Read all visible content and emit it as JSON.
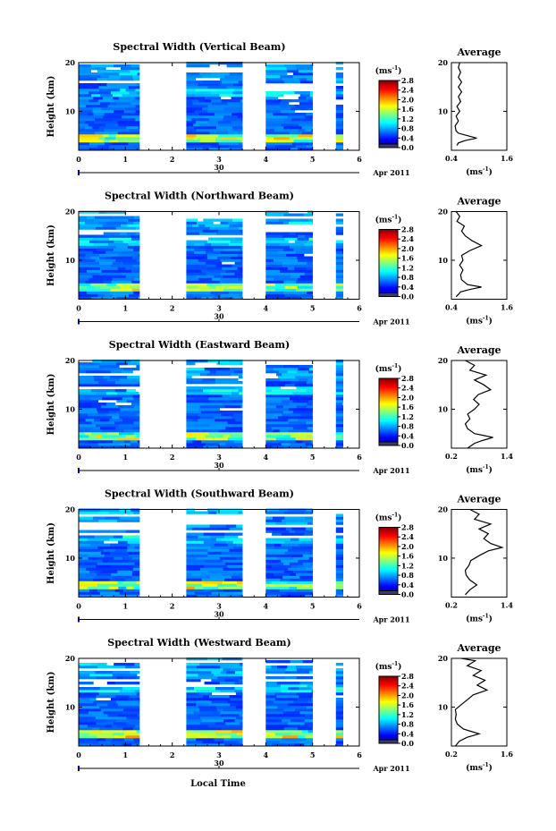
{
  "figure": {
    "xlabel": "Local Time"
  },
  "chart_data": [
    {
      "type": "heatmap",
      "title": "Spectral Width (Vertical Beam)",
      "ylabel": "Height (km)",
      "xlim": [
        0,
        6
      ],
      "ylim": [
        2,
        20
      ],
      "x_ticks": [
        "0",
        "1",
        "2",
        "3",
        "4",
        "5",
        "6"
      ],
      "y_ticks": [
        "10",
        "20"
      ],
      "date_tick": "30",
      "date_label": "Apr 2011",
      "data_segments": [
        [
          0,
          1.3
        ],
        [
          2.3,
          3.5
        ],
        [
          4,
          5
        ],
        [
          5.5,
          5.65
        ]
      ],
      "colorbar": {
        "label": "(ms",
        "label_sup": "-1",
        "label_close": ")",
        "min": 0,
        "max": 2.8,
        "ticks": [
          "0.0",
          "0.4",
          "0.8",
          "1.2",
          "1.6",
          "2.0",
          "2.4",
          "2.8"
        ]
      },
      "profile": {
        "title": "Average",
        "xlim": [
          0.4,
          1.6
        ],
        "x_ticks": [
          "0.4",
          "1.6"
        ],
        "xlabel": "(ms",
        "xlabel_sup": "-1",
        "xlabel_close": ")",
        "y_ticks": [
          "10",
          "20"
        ],
        "points": [
          [
            0.52,
            3
          ],
          [
            0.55,
            3.5
          ],
          [
            0.7,
            4
          ],
          [
            0.95,
            4.5
          ],
          [
            0.75,
            5
          ],
          [
            0.55,
            5.5
          ],
          [
            0.5,
            6
          ],
          [
            0.48,
            7
          ],
          [
            0.55,
            8
          ],
          [
            0.5,
            9
          ],
          [
            0.58,
            10
          ],
          [
            0.52,
            11
          ],
          [
            0.6,
            12
          ],
          [
            0.55,
            13
          ],
          [
            0.62,
            14
          ],
          [
            0.55,
            15
          ],
          [
            0.62,
            16
          ],
          [
            0.55,
            17
          ],
          [
            0.6,
            18
          ],
          [
            0.55,
            19
          ],
          [
            0.58,
            20
          ]
        ]
      }
    },
    {
      "type": "heatmap",
      "title": "Spectral Width (Northward Beam)",
      "ylabel": "Height (km)",
      "xlim": [
        0,
        6
      ],
      "ylim": [
        2,
        20
      ],
      "x_ticks": [
        "0",
        "1",
        "2",
        "3",
        "4",
        "5",
        "6"
      ],
      "y_ticks": [
        "10",
        "20"
      ],
      "date_tick": "30",
      "date_label": "Apr 2011",
      "data_segments": [
        [
          0,
          1.3
        ],
        [
          2.3,
          3.5
        ],
        [
          4,
          5
        ],
        [
          5.5,
          5.65
        ]
      ],
      "colorbar": {
        "label": "(ms",
        "label_sup": "-1",
        "label_close": ")",
        "min": 0,
        "max": 2.8,
        "ticks": [
          "0.0",
          "0.4",
          "0.8",
          "1.2",
          "1.6",
          "2.0",
          "2.4",
          "2.8"
        ]
      },
      "profile": {
        "title": "Average",
        "xlim": [
          0.4,
          1.6
        ],
        "x_ticks": [
          "0.4",
          "1.6"
        ],
        "xlabel": "(ms",
        "xlabel_sup": "-1",
        "xlabel_close": ")",
        "y_ticks": [
          "10",
          "20"
        ],
        "points": [
          [
            0.5,
            2.5
          ],
          [
            0.55,
            3
          ],
          [
            0.6,
            3.5
          ],
          [
            0.8,
            4
          ],
          [
            1.05,
            4.5
          ],
          [
            0.75,
            5
          ],
          [
            0.62,
            6
          ],
          [
            0.6,
            7
          ],
          [
            0.65,
            8
          ],
          [
            0.58,
            9
          ],
          [
            0.65,
            10
          ],
          [
            0.62,
            11
          ],
          [
            0.8,
            12
          ],
          [
            1.05,
            13
          ],
          [
            0.85,
            14
          ],
          [
            0.7,
            15
          ],
          [
            0.62,
            16
          ],
          [
            0.68,
            17
          ],
          [
            0.52,
            18
          ],
          [
            0.58,
            19
          ],
          [
            0.5,
            20
          ]
        ]
      }
    },
    {
      "type": "heatmap",
      "title": "Spectral Width (Eastward Beam)",
      "ylabel": "Height (km)",
      "xlim": [
        0,
        6
      ],
      "ylim": [
        2,
        20
      ],
      "x_ticks": [
        "0",
        "1",
        "2",
        "3",
        "4",
        "5",
        "6"
      ],
      "y_ticks": [
        "10",
        "20"
      ],
      "date_tick": "30",
      "date_label": "Apr 2011",
      "data_segments": [
        [
          0,
          1.3
        ],
        [
          2.3,
          3.5
        ],
        [
          4,
          5
        ],
        [
          5.5,
          5.65
        ]
      ],
      "colorbar": {
        "label": "(ms",
        "label_sup": "-1",
        "label_close": ")",
        "min": 0,
        "max": 2.8,
        "ticks": [
          "0.0",
          "0.4",
          "0.8",
          "1.2",
          "1.6",
          "2.0",
          "2.4",
          "2.8"
        ]
      },
      "profile": {
        "title": "Average",
        "xlim": [
          0.2,
          1.4
        ],
        "x_ticks": [
          "0.2",
          "1.4"
        ],
        "xlabel": "(ms",
        "xlabel_sup": "-1",
        "xlabel_close": ")",
        "y_ticks": [
          "10",
          "20"
        ],
        "points": [
          [
            0.55,
            2
          ],
          [
            0.7,
            3
          ],
          [
            0.85,
            3.5
          ],
          [
            1.1,
            4.2
          ],
          [
            0.7,
            5
          ],
          [
            0.55,
            6
          ],
          [
            0.5,
            7
          ],
          [
            0.6,
            8
          ],
          [
            0.55,
            9
          ],
          [
            0.7,
            10
          ],
          [
            0.8,
            11
          ],
          [
            0.68,
            12
          ],
          [
            0.78,
            13
          ],
          [
            1.05,
            14
          ],
          [
            0.9,
            15
          ],
          [
            0.7,
            16
          ],
          [
            0.95,
            17
          ],
          [
            0.6,
            18
          ],
          [
            0.7,
            19
          ],
          [
            0.5,
            20
          ]
        ]
      }
    },
    {
      "type": "heatmap",
      "title": "Spectral Width (Southward Beam)",
      "ylabel": "Height (km)",
      "xlim": [
        0,
        6
      ],
      "ylim": [
        2,
        20
      ],
      "x_ticks": [
        "0",
        "1",
        "2",
        "3",
        "4",
        "5",
        "6"
      ],
      "y_ticks": [
        "10",
        "20"
      ],
      "date_tick": "30",
      "date_label": "Apr 2011",
      "data_segments": [
        [
          0,
          1.3
        ],
        [
          2.3,
          3.5
        ],
        [
          4,
          5
        ],
        [
          5.5,
          5.65
        ]
      ],
      "colorbar": {
        "label": "(ms",
        "label_sup": "-1",
        "label_close": ")",
        "min": 0,
        "max": 2.8,
        "ticks": [
          "0.0",
          "0.4",
          "0.8",
          "1.2",
          "1.6",
          "2.0",
          "2.4",
          "2.8"
        ]
      },
      "profile": {
        "title": "Average",
        "xlim": [
          0.2,
          1.4
        ],
        "x_ticks": [
          "0.2",
          "1.4"
        ],
        "xlabel": "(ms",
        "xlabel_sup": "-1",
        "xlabel_close": ")",
        "y_ticks": [
          "10",
          "20"
        ],
        "points": [
          [
            0.5,
            2.5
          ],
          [
            0.6,
            3.5
          ],
          [
            0.75,
            4.5
          ],
          [
            0.6,
            5.5
          ],
          [
            0.52,
            6.5
          ],
          [
            0.5,
            7.5
          ],
          [
            0.58,
            8.5
          ],
          [
            0.62,
            9.5
          ],
          [
            0.8,
            10.5
          ],
          [
            1.0,
            11.5
          ],
          [
            1.3,
            12.2
          ],
          [
            1.05,
            13
          ],
          [
            0.9,
            14
          ],
          [
            1.0,
            15
          ],
          [
            0.8,
            16
          ],
          [
            1.05,
            17
          ],
          [
            0.7,
            18
          ],
          [
            0.8,
            19
          ],
          [
            0.6,
            20
          ]
        ]
      }
    },
    {
      "type": "heatmap",
      "title": "Spectral Width (Westward Beam)",
      "ylabel": "Height (km)",
      "xlim": [
        0,
        6
      ],
      "ylim": [
        2,
        20
      ],
      "x_ticks": [
        "0",
        "1",
        "2",
        "3",
        "4",
        "5",
        "6"
      ],
      "y_ticks": [
        "10",
        "20"
      ],
      "date_tick": "30",
      "date_label": "Apr 2011",
      "data_segments": [
        [
          0,
          1.3
        ],
        [
          2.3,
          3.5
        ],
        [
          4,
          5
        ],
        [
          5.5,
          5.65
        ]
      ],
      "colorbar": {
        "label": "(ms",
        "label_sup": "-1",
        "label_close": ")",
        "min": 0,
        "max": 2.8,
        "ticks": [
          "0.0",
          "0.4",
          "0.8",
          "1.2",
          "1.6",
          "2.0",
          "2.4",
          "2.8"
        ]
      },
      "profile": {
        "title": "Average",
        "xlim": [
          0.2,
          1.6
        ],
        "x_ticks": [
          "0.2",
          "1.6"
        ],
        "xlabel": "(ms",
        "xlabel_sup": "-1",
        "xlabel_close": ")",
        "y_ticks": [
          "10",
          "20"
        ],
        "points": [
          [
            0.3,
            2
          ],
          [
            0.4,
            3
          ],
          [
            0.6,
            3.8
          ],
          [
            0.9,
            4.5
          ],
          [
            0.5,
            5.5
          ],
          [
            0.35,
            6.5
          ],
          [
            0.3,
            7.5
          ],
          [
            0.32,
            8.5
          ],
          [
            0.3,
            9.5
          ],
          [
            0.45,
            10.5
          ],
          [
            0.6,
            11.5
          ],
          [
            0.75,
            12.5
          ],
          [
            1.1,
            13.5
          ],
          [
            0.85,
            14.5
          ],
          [
            1.05,
            15.5
          ],
          [
            0.75,
            16.5
          ],
          [
            0.95,
            17.5
          ],
          [
            0.6,
            18.5
          ],
          [
            0.8,
            19.5
          ],
          [
            0.45,
            20
          ]
        ]
      }
    }
  ]
}
